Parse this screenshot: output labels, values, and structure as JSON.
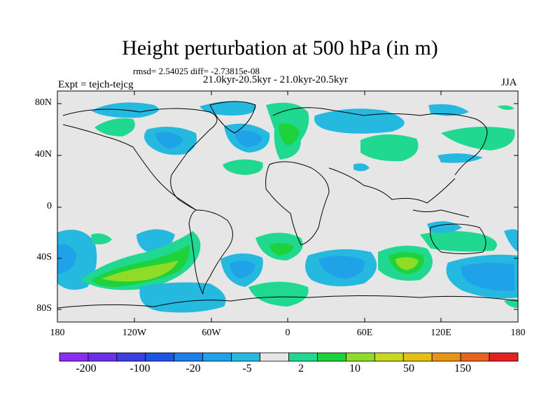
{
  "title": "Height perturbation at 500 hPa (in m)",
  "stats_text": "rmsd= 2.54025 diff= -2.73815e-08",
  "period_text": "21.0kyr-20.5kyr - 21.0kyr-20.5kyr",
  "experiment_text": "Expt = tejch-tejcg",
  "season": "JJA",
  "lat_labels": [
    "80N",
    "40N",
    "0",
    "40S",
    "80S"
  ],
  "lon_labels": [
    "180",
    "120W",
    "60W",
    "0",
    "60E",
    "120E",
    "180"
  ],
  "colorbar": {
    "labels": [
      "-200",
      "-100",
      "-20",
      "-5",
      "2",
      "10",
      "50",
      "150"
    ],
    "colors": [
      "#8c2cf2",
      "#6a30e8",
      "#3c3fe0",
      "#1f55e6",
      "#1f7fe8",
      "#1fa2e8",
      "#25b9e0",
      "#e6e6e6",
      "#20d890",
      "#1ed23c",
      "#8fdc28",
      "#c8d81e",
      "#e6bf14",
      "#e69614",
      "#e6641e",
      "#e62020"
    ]
  },
  "colors": {
    "background": "#e6e6e6",
    "neg_strong": "#1fa2e8",
    "neg_weak": "#25b9e0",
    "pos_weak": "#20d890",
    "pos_mid": "#1ed23c",
    "pos_strong": "#8fdc28"
  }
}
